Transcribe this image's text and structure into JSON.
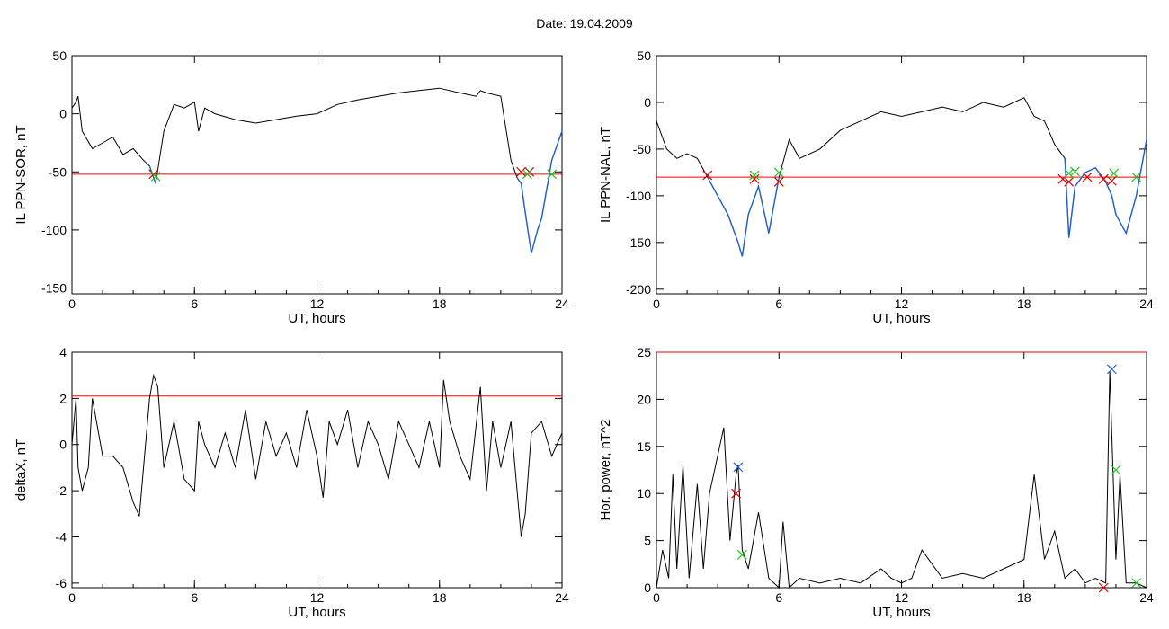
{
  "header": {
    "date_label": "Date:",
    "date_value": "19.04.2009"
  },
  "threshold_color": "#ff0000",
  "curve_color": "#000000",
  "event_color": "#1f5fd0",
  "chart_data": [
    {
      "type": "line",
      "id": "il-ppn-sor",
      "xlabel": "UT, hours",
      "ylabel": "IL PPN-SOR, nT",
      "xlim": [
        0,
        24
      ],
      "ylim": [
        -155,
        50
      ],
      "xticks": [
        0,
        6,
        12,
        18,
        24
      ],
      "yticks": [
        50,
        0,
        -50,
        -100,
        -150
      ],
      "threshold": -52,
      "x": [
        0,
        0.2,
        0.3,
        0.5,
        1,
        1.5,
        2,
        2.5,
        3,
        3.5,
        3.8,
        4,
        4.1,
        4.5,
        5,
        5.5,
        6,
        6.2,
        6.5,
        7,
        8,
        9,
        10,
        11,
        12,
        13,
        14,
        15,
        16,
        17,
        18,
        19,
        19.8,
        20,
        20.3,
        21,
        21.5,
        21.8,
        22,
        22.2,
        22.5,
        22.8,
        23,
        23.5,
        24
      ],
      "y": [
        5,
        10,
        15,
        -15,
        -30,
        -25,
        -20,
        -35,
        -30,
        -40,
        -45,
        -55,
        -60,
        -15,
        8,
        5,
        10,
        -15,
        5,
        0,
        -5,
        -8,
        -5,
        -2,
        0,
        8,
        12,
        15,
        18,
        20,
        22,
        18,
        15,
        20,
        18,
        15,
        -40,
        -55,
        -60,
        -85,
        -120,
        -100,
        -90,
        -40,
        -15
      ],
      "event_segments": [
        [
          3.8,
          4.2
        ],
        [
          21.8,
          24
        ]
      ],
      "markers_red": [
        {
          "x": 4.0,
          "y": -52
        },
        {
          "x": 22.0,
          "y": -50
        },
        {
          "x": 22.4,
          "y": -50
        }
      ],
      "markers_green": [
        {
          "x": 4.1,
          "y": -54
        },
        {
          "x": 22.3,
          "y": -52
        },
        {
          "x": 23.5,
          "y": -52
        }
      ]
    },
    {
      "type": "line",
      "id": "il-ppn-nal",
      "xlabel": "UT, hours",
      "ylabel": "IL PPN-NAL, nT",
      "xlim": [
        0,
        24
      ],
      "ylim": [
        -205,
        50
      ],
      "xticks": [
        0,
        6,
        12,
        18,
        24
      ],
      "yticks": [
        50,
        0,
        -50,
        -100,
        -150,
        -200
      ],
      "threshold": -80,
      "x": [
        0,
        0.5,
        1,
        1.5,
        2,
        2.5,
        3,
        3.5,
        4,
        4.2,
        4.5,
        5,
        5.5,
        6,
        6.5,
        7,
        8,
        9,
        10,
        11,
        12,
        13,
        14,
        15,
        16,
        17,
        18,
        18.5,
        19,
        19.5,
        20,
        20.2,
        20.5,
        21,
        21.5,
        22,
        22.3,
        22.5,
        23,
        23.5,
        24
      ],
      "y": [
        -20,
        -50,
        -60,
        -55,
        -60,
        -80,
        -100,
        -120,
        -150,
        -165,
        -120,
        -90,
        -140,
        -80,
        -40,
        -60,
        -50,
        -30,
        -20,
        -10,
        -15,
        -10,
        -5,
        -10,
        0,
        -5,
        5,
        -15,
        -20,
        -45,
        -60,
        -145,
        -90,
        -75,
        -70,
        -85,
        -100,
        -120,
        -140,
        -100,
        -40
      ],
      "event_segments": [
        [
          2.5,
          6.1
        ],
        [
          19.8,
          24
        ]
      ],
      "markers_red": [
        {
          "x": 2.5,
          "y": -78
        },
        {
          "x": 4.8,
          "y": -82
        },
        {
          "x": 6.0,
          "y": -85
        },
        {
          "x": 19.9,
          "y": -82
        },
        {
          "x": 20.2,
          "y": -85
        },
        {
          "x": 21.1,
          "y": -80
        },
        {
          "x": 21.9,
          "y": -82
        },
        {
          "x": 22.3,
          "y": -84
        }
      ],
      "markers_green": [
        {
          "x": 4.8,
          "y": -78
        },
        {
          "x": 6.0,
          "y": -75
        },
        {
          "x": 20.2,
          "y": -76
        },
        {
          "x": 20.5,
          "y": -74
        },
        {
          "x": 22.4,
          "y": -76
        },
        {
          "x": 23.5,
          "y": -80
        }
      ]
    },
    {
      "type": "line",
      "id": "deltax",
      "xlabel": "UT, hours",
      "ylabel": "deltaX, nT",
      "xlim": [
        0,
        24
      ],
      "ylim": [
        -6.2,
        4
      ],
      "xticks": [
        0,
        6,
        12,
        18,
        24
      ],
      "yticks": [
        4,
        2,
        0,
        -2,
        -4,
        -6
      ],
      "threshold": 2.1,
      "x": [
        0,
        0.2,
        0.3,
        0.5,
        0.8,
        1,
        1.2,
        1.5,
        2,
        2.5,
        3,
        3.3,
        3.6,
        3.8,
        4,
        4.2,
        4.5,
        5,
        5.5,
        6,
        6.2,
        6.5,
        7,
        7.5,
        8,
        8.5,
        9,
        9.5,
        10,
        10.5,
        11,
        11.5,
        12,
        12.3,
        12.6,
        13,
        13.5,
        14,
        14.5,
        15,
        15.5,
        16,
        16.5,
        17,
        17.5,
        18,
        18.2,
        18.5,
        19,
        19.5,
        20,
        20.3,
        20.6,
        21,
        21.5,
        22,
        22.2,
        22.5,
        23,
        23.5,
        24
      ],
      "y": [
        0,
        2,
        -1,
        -2,
        -1,
        2,
        1,
        -0.5,
        -0.5,
        -1,
        -2.5,
        -3.1,
        0,
        2,
        3,
        2.5,
        -1,
        1,
        -1.5,
        -2,
        1,
        0,
        -1,
        0.5,
        -1,
        1.5,
        -1.5,
        1,
        -0.5,
        0.5,
        -1,
        1.5,
        -0.5,
        -2.3,
        1,
        0,
        1.5,
        -1,
        1,
        0,
        -1.5,
        1,
        0,
        -1,
        1,
        -1,
        2.8,
        1,
        -0.5,
        -1.5,
        2.5,
        -2,
        1,
        -1,
        1,
        -4,
        -3,
        0.5,
        1,
        -0.5,
        0.5
      ],
      "event_segments": [],
      "markers_red": [],
      "markers_green": []
    },
    {
      "type": "line",
      "id": "hor-power",
      "xlabel": "UT, hours",
      "ylabel": "Hor. power, nT^2",
      "xlim": [
        0,
        24
      ],
      "ylim": [
        0,
        25
      ],
      "xticks": [
        0,
        6,
        12,
        18,
        24
      ],
      "yticks": [
        0,
        5,
        10,
        15,
        20,
        25
      ],
      "threshold": 25,
      "x": [
        0,
        0.3,
        0.6,
        0.8,
        1,
        1.3,
        1.6,
        2,
        2.3,
        2.6,
        3,
        3.3,
        3.6,
        3.9,
        4,
        4.2,
        4.5,
        5,
        5.5,
        6,
        6.2,
        6.5,
        7,
        8,
        9,
        10,
        11,
        11.5,
        12,
        12.5,
        13,
        14,
        15,
        16,
        17,
        18,
        18.5,
        19,
        19.5,
        20,
        20.5,
        21,
        21.5,
        22,
        22.2,
        22.5,
        22.7,
        23,
        23.5,
        24
      ],
      "y": [
        0,
        4,
        1,
        12,
        2,
        13,
        1,
        11,
        2,
        10,
        14,
        17,
        5,
        12,
        13,
        4,
        2,
        8,
        1,
        0,
        7,
        0,
        1,
        0.5,
        1,
        0.5,
        2,
        1,
        0.5,
        1,
        4,
        1,
        1.5,
        1,
        2,
        3,
        12,
        3,
        6,
        1,
        2,
        0.5,
        1,
        0.5,
        23,
        3,
        12,
        0.5,
        0.5,
        0
      ],
      "event_segments": [],
      "markers_red": [
        {
          "x": 3.9,
          "y": 10
        },
        {
          "x": 21.9,
          "y": 0
        }
      ],
      "markers_green": [
        {
          "x": 4.2,
          "y": 3.5
        },
        {
          "x": 22.5,
          "y": 12.5
        },
        {
          "x": 23.5,
          "y": 0.5
        }
      ],
      "markers_blue": [
        {
          "x": 4.0,
          "y": 12.8
        },
        {
          "x": 22.3,
          "y": 23.2
        }
      ]
    }
  ]
}
